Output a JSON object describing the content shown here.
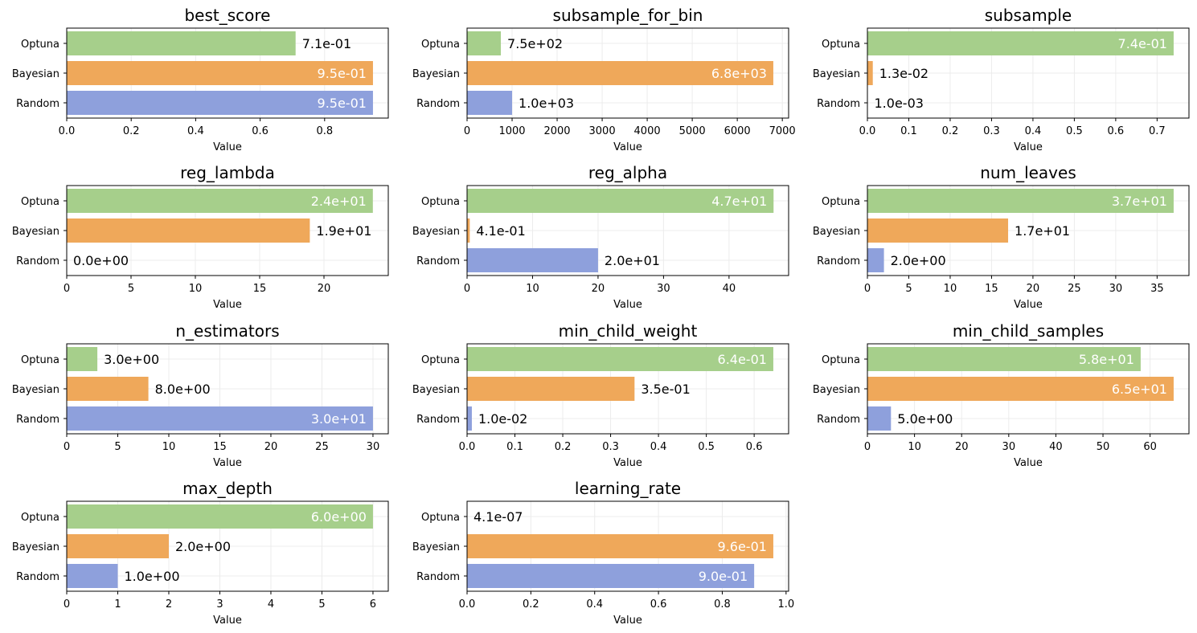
{
  "chart_data": [
    {
      "type": "bar",
      "orientation": "horizontal",
      "title": "best_score",
      "xlabel": "Value",
      "categories": [
        "Optuna",
        "Bayesian",
        "Random"
      ],
      "values": [
        0.71,
        0.95,
        0.95
      ],
      "labels": [
        "7.1e-01",
        "9.5e-01",
        "9.5e-01"
      ],
      "xlim": [
        0,
        0.9975
      ],
      "xticks": [
        0,
        0.2,
        0.4,
        0.6,
        0.8
      ],
      "xtick_labels": [
        "0.0",
        "0.2",
        "0.4",
        "0.6",
        "0.8"
      ]
    },
    {
      "type": "bar",
      "orientation": "horizontal",
      "title": "subsample_for_bin",
      "xlabel": "Value",
      "categories": [
        "Optuna",
        "Bayesian",
        "Random"
      ],
      "values": [
        750,
        6800,
        1000
      ],
      "labels": [
        "7.5e+02",
        "6.8e+03",
        "1.0e+03"
      ],
      "xlim": [
        0,
        7140
      ],
      "xticks": [
        0,
        1000,
        2000,
        3000,
        4000,
        5000,
        6000,
        7000
      ],
      "xtick_labels": [
        "0",
        "1000",
        "2000",
        "3000",
        "4000",
        "5000",
        "6000",
        "7000"
      ]
    },
    {
      "type": "bar",
      "orientation": "horizontal",
      "title": "subsample",
      "xlabel": "Value",
      "categories": [
        "Optuna",
        "Bayesian",
        "Random"
      ],
      "values": [
        0.74,
        0.013,
        0.001
      ],
      "labels": [
        "7.4e-01",
        "1.3e-02",
        "1.0e-03"
      ],
      "xlim": [
        0,
        0.777
      ],
      "xticks": [
        0,
        0.1,
        0.2,
        0.3,
        0.4,
        0.5,
        0.6,
        0.7
      ],
      "xtick_labels": [
        "0.0",
        "0.1",
        "0.2",
        "0.3",
        "0.4",
        "0.5",
        "0.6",
        "0.7"
      ]
    },
    {
      "type": "bar",
      "orientation": "horizontal",
      "title": "reg_lambda",
      "xlabel": "Value",
      "categories": [
        "Optuna",
        "Bayesian",
        "Random"
      ],
      "values": [
        23.8,
        18.9,
        0
      ],
      "labels": [
        "2.4e+01",
        "1.9e+01",
        "0.0e+00"
      ],
      "xlim": [
        0,
        25
      ],
      "xticks": [
        0,
        5,
        10,
        15,
        20
      ],
      "xtick_labels": [
        "0",
        "5",
        "10",
        "15",
        "20"
      ]
    },
    {
      "type": "bar",
      "orientation": "horizontal",
      "title": "reg_alpha",
      "xlabel": "Value",
      "categories": [
        "Optuna",
        "Bayesian",
        "Random"
      ],
      "values": [
        46.8,
        0.41,
        20
      ],
      "labels": [
        "4.7e+01",
        "4.1e-01",
        "2.0e+01"
      ],
      "xlim": [
        0,
        49.1
      ],
      "xticks": [
        0,
        10,
        20,
        30,
        40
      ],
      "xtick_labels": [
        "0",
        "10",
        "20",
        "30",
        "40"
      ]
    },
    {
      "type": "bar",
      "orientation": "horizontal",
      "title": "num_leaves",
      "xlabel": "Value",
      "categories": [
        "Optuna",
        "Bayesian",
        "Random"
      ],
      "values": [
        37,
        17,
        2
      ],
      "labels": [
        "3.7e+01",
        "1.7e+01",
        "2.0e+00"
      ],
      "xlim": [
        0,
        38.85
      ],
      "xticks": [
        0,
        5,
        10,
        15,
        20,
        25,
        30,
        35
      ],
      "xtick_labels": [
        "0",
        "5",
        "10",
        "15",
        "20",
        "25",
        "30",
        "35"
      ]
    },
    {
      "type": "bar",
      "orientation": "horizontal",
      "title": "n_estimators",
      "xlabel": "Value",
      "categories": [
        "Optuna",
        "Bayesian",
        "Random"
      ],
      "values": [
        3,
        8,
        30
      ],
      "labels": [
        "3.0e+00",
        "8.0e+00",
        "3.0e+01"
      ],
      "xlim": [
        0,
        31.5
      ],
      "xticks": [
        0,
        5,
        10,
        15,
        20,
        25,
        30
      ],
      "xtick_labels": [
        "0",
        "5",
        "10",
        "15",
        "20",
        "25",
        "30"
      ]
    },
    {
      "type": "bar",
      "orientation": "horizontal",
      "title": "min_child_weight",
      "xlabel": "Value",
      "categories": [
        "Optuna",
        "Bayesian",
        "Random"
      ],
      "values": [
        0.64,
        0.35,
        0.01
      ],
      "labels": [
        "6.4e-01",
        "3.5e-01",
        "1.0e-02"
      ],
      "xlim": [
        0,
        0.672
      ],
      "xticks": [
        0,
        0.1,
        0.2,
        0.3,
        0.4,
        0.5,
        0.6
      ],
      "xtick_labels": [
        "0.0",
        "0.1",
        "0.2",
        "0.3",
        "0.4",
        "0.5",
        "0.6"
      ]
    },
    {
      "type": "bar",
      "orientation": "horizontal",
      "title": "min_child_samples",
      "xlabel": "Value",
      "categories": [
        "Optuna",
        "Bayesian",
        "Random"
      ],
      "values": [
        58,
        65,
        5
      ],
      "labels": [
        "5.8e+01",
        "6.5e+01",
        "5.0e+00"
      ],
      "xlim": [
        0,
        68.25
      ],
      "xticks": [
        0,
        10,
        20,
        30,
        40,
        50,
        60
      ],
      "xtick_labels": [
        "0",
        "10",
        "20",
        "30",
        "40",
        "50",
        "60"
      ]
    },
    {
      "type": "bar",
      "orientation": "horizontal",
      "title": "max_depth",
      "xlabel": "Value",
      "categories": [
        "Optuna",
        "Bayesian",
        "Random"
      ],
      "values": [
        6,
        2,
        1
      ],
      "labels": [
        "6.0e+00",
        "2.0e+00",
        "1.0e+00"
      ],
      "xlim": [
        0,
        6.3
      ],
      "xticks": [
        0,
        1,
        2,
        3,
        4,
        5,
        6
      ],
      "xtick_labels": [
        "0",
        "1",
        "2",
        "3",
        "4",
        "5",
        "6"
      ]
    },
    {
      "type": "bar",
      "orientation": "horizontal",
      "title": "learning_rate",
      "xlabel": "Value",
      "categories": [
        "Optuna",
        "Bayesian",
        "Random"
      ],
      "values": [
        4.1e-07,
        0.96,
        0.9
      ],
      "labels": [
        "4.1e-07",
        "9.6e-01",
        "9.0e-01"
      ],
      "xlim": [
        0,
        1.008
      ],
      "xticks": [
        0,
        0.2,
        0.4,
        0.6,
        0.8,
        1.0
      ],
      "xtick_labels": [
        "0.0",
        "0.2",
        "0.4",
        "0.6",
        "0.8",
        "1.0"
      ]
    }
  ],
  "colors": {
    "Optuna": "#a6cf8b",
    "Bayesian": "#efa85a",
    "Random": "#8ea0dc",
    "grid": "#ececec",
    "axis": "#000000",
    "inside_label": "#ffffff",
    "outside_label": "#000000"
  },
  "grid": true
}
